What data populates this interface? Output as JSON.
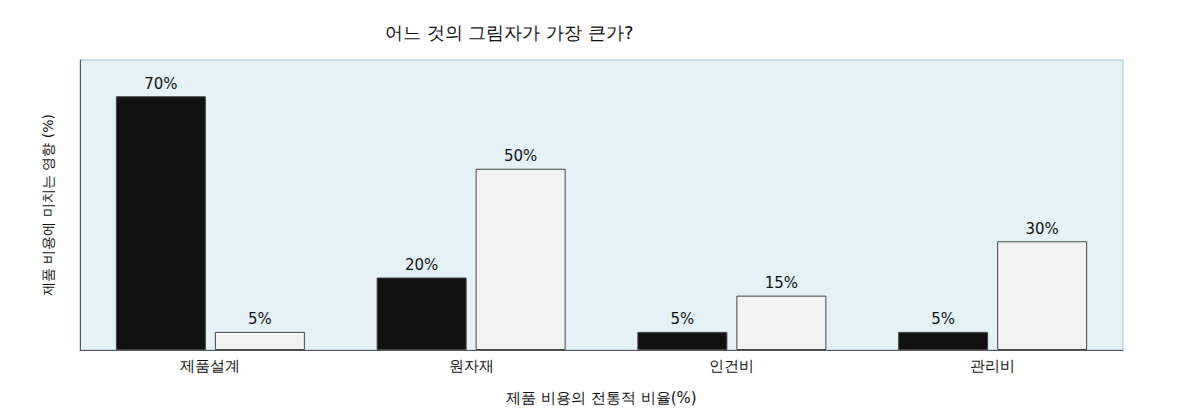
{
  "chart_data": {
    "type": "bar",
    "title": "어느 것의 그림자가 가장 큰가?",
    "x_label": "제품 비용의 전통적 비율(%)",
    "y_label": "제품 비용에 미치는 영향 (%)",
    "categories": [
      "제품설계",
      "원자재",
      "인건비",
      "관리비"
    ],
    "series": [
      {
        "values": [
          70,
          20,
          5,
          5
        ],
        "value_labels": [
          "70%",
          "20%",
          "5%",
          "5%"
        ],
        "color": "#111111"
      },
      {
        "values": [
          5,
          50,
          15,
          30
        ],
        "value_labels": [
          "5%",
          "50%",
          "15%",
          "30%"
        ],
        "color": "#f2f2f2"
      }
    ],
    "ylim": [
      0,
      80
    ],
    "tick_labels": "x",
    "data_labels": true,
    "grid": false
  }
}
